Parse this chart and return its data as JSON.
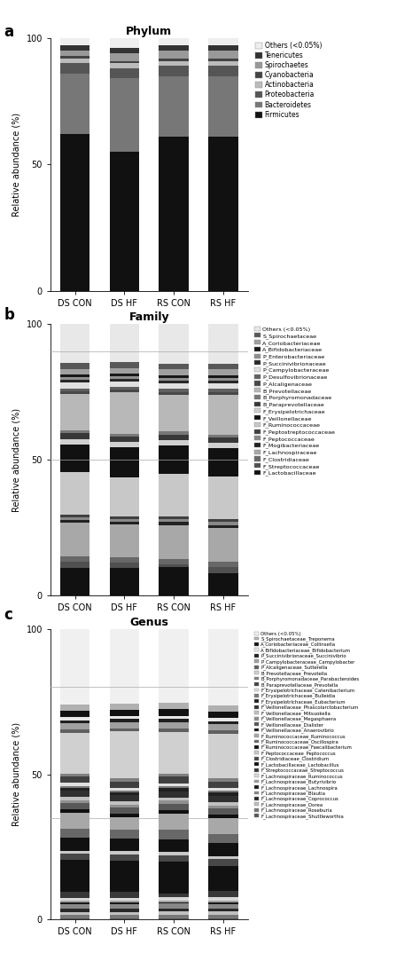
{
  "categories": [
    "DS CON",
    "DS HF",
    "RS CON",
    "RS HF"
  ],
  "phylum_labels": [
    "Firmicutes",
    "Bacteroidetes",
    "Proteobacteria",
    "Actinobacteria",
    "Cyanobacteria",
    "Spirochaetes",
    "Tenericutes",
    "Others (<0.05%)"
  ],
  "phylum_colors": [
    "#111111",
    "#777777",
    "#555555",
    "#bbbbbb",
    "#444444",
    "#999999",
    "#333333",
    "#eeeeee"
  ],
  "phylum_data": {
    "Firmicutes": [
      62,
      55,
      61,
      61
    ],
    "Bacteroidetes": [
      24,
      29,
      24,
      24
    ],
    "Proteobacteria": [
      4,
      4,
      4,
      4
    ],
    "Actinobacteria": [
      2,
      2,
      2,
      2
    ],
    "Cyanobacteria": [
      1,
      1,
      1,
      1
    ],
    "Spirochaetes": [
      2,
      3,
      3,
      3
    ],
    "Tenericutes": [
      2,
      2,
      2,
      2
    ],
    "Others (<0.05%)": [
      3,
      4,
      3,
      3
    ]
  },
  "family_labels": [
    "F_Lactobacillaceae",
    "F_Streptococcaceae",
    "F_Clostridiaceae",
    "F_Lachnospiraceae",
    "F_Mogibacteriaceae",
    "F_Peptococcaceae",
    "F_Peptostreptococcaceae",
    "F_Ruminococcaceae",
    "F_Veillonellaceae",
    "F_Erysipelotrichaceae",
    "B_Paraprevotellaceae",
    "B_Porphyromonadaceae",
    "B_Prevotellaceae",
    "P_Alcaligenaceae",
    "P_Desulfovibrionaceae",
    "P_Campylobacteraceae",
    "P_Succinivibrionaceae",
    "P_Enterobacteriaceae",
    "A_Bifidobacteriaceae",
    "A_Coriobacteriaceae",
    "S_Spirochaetaceae",
    "Others (<0.05%)"
  ],
  "family_colors": [
    "#111111",
    "#505050",
    "#686868",
    "#a8a8a8",
    "#222222",
    "#888888",
    "#404040",
    "#c8c8c8",
    "#111111",
    "#d0d0d0",
    "#383838",
    "#787878",
    "#b8b8b8",
    "#484848",
    "#606060",
    "#e0e0e0",
    "#282828",
    "#909090",
    "#181818",
    "#a0a0a0",
    "#585858",
    "#e8e8e8"
  ],
  "family_data": {
    "F_Lactobacillaceae": [
      10,
      10,
      10,
      8
    ],
    "F_Streptococcaceae": [
      2,
      2,
      1,
      2
    ],
    "F_Clostridiaceae": [
      2,
      2,
      2,
      2
    ],
    "F_Lachnospiraceae": [
      12,
      12,
      12,
      12
    ],
    "F_Mogibacteriaceae": [
      1,
      1,
      1,
      1
    ],
    "F_Peptococcaceae": [
      1,
      1,
      1,
      1
    ],
    "F_Peptostreptococcaceae": [
      1,
      1,
      1,
      1
    ],
    "F_Ruminococcaceae": [
      15,
      14,
      15,
      15
    ],
    "F_Veillonellaceae": [
      10,
      11,
      10,
      10
    ],
    "F_Erysipelotrichaceae": [
      2,
      2,
      2,
      2
    ],
    "B_Paraprevotellaceae": [
      2,
      2,
      2,
      2
    ],
    "B_Porphyromonadaceae": [
      1,
      1,
      1,
      1
    ],
    "B_Prevotellaceae": [
      13,
      15,
      13,
      14
    ],
    "P_Alcaligenaceae": [
      1,
      1,
      1,
      1
    ],
    "P_Desulfovibrionaceae": [
      1,
      1,
      1,
      1
    ],
    "P_Campylobacteraceae": [
      2,
      2,
      2,
      2
    ],
    "P_Succinivibrionaceae": [
      1,
      1,
      1,
      1
    ],
    "P_Enterobacteriaceae": [
      1,
      1,
      1,
      1
    ],
    "A_Bifidobacteriaceae": [
      1,
      1,
      1,
      1
    ],
    "A_Coriobacteriaceae": [
      2,
      2,
      2,
      2
    ],
    "S_Spirochaetaceae": [
      2,
      2,
      2,
      2
    ],
    "Others (<0.05%)": [
      14,
      14,
      14,
      14
    ]
  },
  "genus_labels": [
    "F_Lachnospiraceae_Shuttleworthia",
    "F_Lachnospiraceae_Roseburia",
    "F_Lachnospiraceae_Dorea",
    "F_Lachnospiraceae_Coprococcus",
    "F_Lachnospiraceae_Blautia",
    "F_Lachnospiraceae_Lachnospira",
    "F_Lachnospiraceae_Butyrivibrio",
    "F_Lachnospiraceae_Ruminococcus",
    "F_Streptococcaceae_Streptococcus",
    "F_Lactobacillaceae_Lactobacillus",
    "F_Clostridiaceae_Clostridium",
    "F_Peptococcaceae_Peptococcus",
    "F_Ruminococcaceae_Faecalibacterium",
    "F_Ruminococcaceae_Oscillospira",
    "F_Ruminococcaceae_Ruminococcus",
    "F_Veillonellaceae_Anaerovibrio",
    "F_Veillonellaceae_Dialister",
    "F_Veillonellaceae_Megasphaera",
    "F_Veillonellaceae_Mitsuokella",
    "F_Veillonellaceae_Phascolarctobacterium",
    "F_Erysipelotrichaceae_Eubacterium",
    "F_Erysipelotrichaceae_Bulleidia",
    "F_Erysipelotrichaceae_Catenibacterium",
    "B_Paraprevotellaceae_Prevotella",
    "B_Porphyromonadaceae_Parabacteroides",
    "B_Prevotellaceae_Prevotella",
    "P_Alcaligenaceae_Sutterella",
    "P_Campylobacteraceae_Campylobacter",
    "P_Succinivibrionaceae_Succinivibrio",
    "A_Bifidobacteriaceae_Bifidobacterium",
    "A_Coriobacteriaceae_Collinsella",
    "S_Spirochaetaceae_Treponema",
    "Others (<0.05%)"
  ],
  "genus_colors": [
    "#585858",
    "#787878",
    "#c0c0c0",
    "#282828",
    "#888888",
    "#181818",
    "#a0a0a0",
    "#d8d8d8",
    "#383838",
    "#111111",
    "#484848",
    "#c8c8c8",
    "#111111",
    "#686868",
    "#a8a8a8",
    "#101010",
    "#585858",
    "#909090",
    "#c0c0c0",
    "#303030",
    "#202020",
    "#787878",
    "#e0e0e0",
    "#404040",
    "#808080",
    "#d0d0d0",
    "#606060",
    "#a0a0a0",
    "#202020",
    "#e8e8e8",
    "#111111",
    "#b0b0b0",
    "#f0f0f0"
  ],
  "genus_data": {
    "F_Lachnospiraceae_Shuttleworthia": [
      0.5,
      0.5,
      0.5,
      0.5
    ],
    "F_Lachnospiraceae_Roseburia": [
      1.0,
      1.0,
      1.0,
      1.0
    ],
    "F_Lachnospiraceae_Dorea": [
      1.0,
      1.0,
      1.0,
      1.0
    ],
    "F_Lachnospiraceae_Coprococcus": [
      1.0,
      1.0,
      1.0,
      1.0
    ],
    "F_Lachnospiraceae_Blautia": [
      1.5,
      1.5,
      1.5,
      1.5
    ],
    "F_Lachnospiraceae_Lachnospira": [
      0.5,
      0.5,
      0.5,
      0.5
    ],
    "F_Lachnospiraceae_Butyrivibrio": [
      0.5,
      0.5,
      0.5,
      0.5
    ],
    "F_Lachnospiraceae_Ruminococcus": [
      1.0,
      1.0,
      1.0,
      1.0
    ],
    "F_Streptococcaceae_Streptococcus": [
      2.0,
      2.0,
      1.0,
      2.0
    ],
    "F_Lactobacillaceae_Lactobacillus": [
      10.0,
      10.0,
      10.0,
      8.0
    ],
    "F_Clostridiaceae_Clostridium": [
      2.0,
      2.0,
      2.0,
      2.0
    ],
    "F_Peptococcaceae_Peptococcus": [
      1.0,
      1.0,
      1.0,
      1.0
    ],
    "F_Ruminococcaceae_Faecalibacterium": [
      4.0,
      4.0,
      4.0,
      4.0
    ],
    "F_Ruminococcaceae_Oscillospira": [
      3.0,
      3.0,
      3.0,
      3.0
    ],
    "F_Ruminococcaceae_Ruminococcus": [
      5.0,
      4.0,
      5.0,
      5.0
    ],
    "F_Veillonellaceae_Anaerovibrio": [
      1.0,
      1.0,
      1.0,
      1.0
    ],
    "F_Veillonellaceae_Dialister": [
      2.0,
      2.0,
      2.0,
      2.0
    ],
    "F_Veillonellaceae_Megasphaera": [
      1.0,
      1.0,
      1.0,
      1.0
    ],
    "F_Veillonellaceae_Mitsuokella": [
      1.0,
      1.0,
      1.0,
      1.0
    ],
    "F_Veillonellaceae_Phascolarctobacterium": [
      2.0,
      2.0,
      2.0,
      2.0
    ],
    "F_Erysipelotrichaceae_Eubacterium": [
      1.0,
      1.0,
      1.0,
      1.0
    ],
    "F_Erysipelotrichaceae_Bulleidia": [
      0.5,
      0.5,
      0.5,
      0.5
    ],
    "F_Erysipelotrichaceae_Catenibacterium": [
      1.0,
      1.0,
      1.0,
      1.0
    ],
    "B_Paraprevotellaceae_Prevotella": [
      2.0,
      2.0,
      2.0,
      2.0
    ],
    "B_Porphyromonadaceae_Parabacteroides": [
      1.0,
      1.0,
      1.0,
      1.0
    ],
    "B_Prevotellaceae_Prevotella": [
      13.0,
      15.0,
      13.0,
      14.0
    ],
    "P_Alcaligenaceae_Sutterella": [
      1.0,
      1.0,
      1.0,
      1.0
    ],
    "P_Campylobacteraceae_Campylobacter": [
      2.0,
      2.0,
      2.0,
      2.0
    ],
    "P_Succinivibrionaceae_Succinivibrio": [
      1.0,
      1.0,
      1.0,
      1.0
    ],
    "A_Bifidobacteriaceae_Bifidobacterium": [
      1.0,
      1.0,
      1.0,
      1.0
    ],
    "A_Coriobacteriaceae_Collinsella": [
      2.0,
      2.0,
      2.0,
      2.0
    ],
    "S_Spirochaetaceae_Treponema": [
      2.0,
      2.0,
      2.0,
      2.0
    ],
    "Others (<0.05%)": [
      24.0,
      24.0,
      23.0,
      24.0
    ]
  },
  "bar_width": 0.6,
  "ylabel": "Relative abundance (%)",
  "xlabel_cats": [
    "DS CON",
    "DS HF",
    "RS CON",
    "RS HF"
  ]
}
